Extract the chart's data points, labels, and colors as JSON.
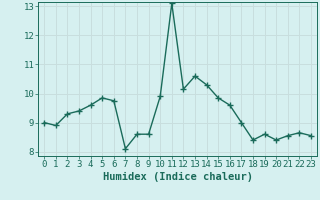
{
  "x": [
    0,
    1,
    2,
    3,
    4,
    5,
    6,
    7,
    8,
    9,
    10,
    11,
    12,
    13,
    14,
    15,
    16,
    17,
    18,
    19,
    20,
    21,
    22,
    23
  ],
  "y": [
    9.0,
    8.9,
    9.3,
    9.4,
    9.6,
    9.85,
    9.75,
    8.1,
    8.6,
    8.6,
    9.9,
    13.1,
    10.15,
    10.6,
    10.3,
    9.85,
    9.6,
    9.0,
    8.4,
    8.6,
    8.4,
    8.55,
    8.65,
    8.55
  ],
  "line_color": "#1a6b5a",
  "marker": "+",
  "marker_size": 4,
  "background_color": "#d6f0f0",
  "grid_color": "#c8dede",
  "xlabel": "Humidex (Indice chaleur)",
  "ylim": [
    8,
    13
  ],
  "xlim": [
    -0.5,
    23.5
  ],
  "yticks": [
    8,
    9,
    10,
    11,
    12,
    13
  ],
  "xticks": [
    0,
    1,
    2,
    3,
    4,
    5,
    6,
    7,
    8,
    9,
    10,
    11,
    12,
    13,
    14,
    15,
    16,
    17,
    18,
    19,
    20,
    21,
    22,
    23
  ],
  "tick_fontsize": 6.5,
  "xlabel_fontsize": 7.5,
  "line_width": 1.0,
  "marker_edge_width": 1.0
}
